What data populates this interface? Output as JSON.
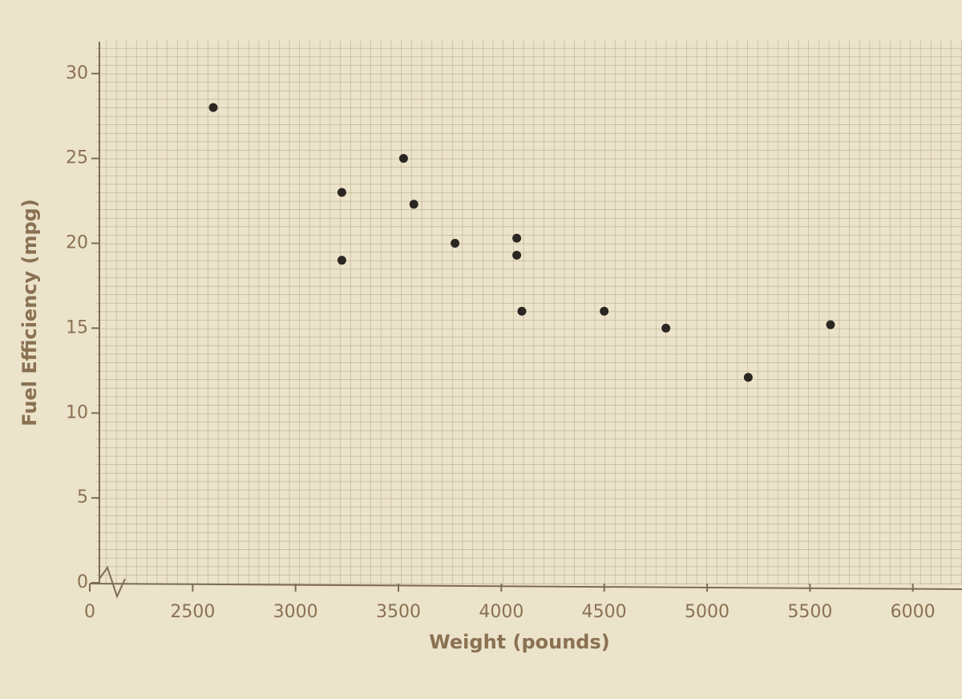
{
  "chart_data": {
    "type": "scatter",
    "x_label": "Weight (pounds)",
    "y_label": "Fuel Efficiency (mpg)",
    "x": [
      2600,
      3225,
      3225,
      3525,
      3575,
      3775,
      4075,
      4075,
      4100,
      4500,
      4800,
      5200,
      5600
    ],
    "values": [
      28,
      23,
      19,
      25,
      22.3,
      20,
      20.3,
      19.3,
      16,
      16,
      15,
      12.1,
      15.2
    ],
    "color": "#2b2622",
    "xlim": [
      0,
      6200
    ],
    "x_break": [
      0,
      2000
    ],
    "xticks": [
      0,
      2500,
      3000,
      3500,
      4000,
      4500,
      5000,
      5500,
      6000
    ],
    "ylim": [
      0,
      31.5
    ],
    "yticks": [
      0,
      5,
      10,
      15,
      20,
      25,
      30
    ],
    "grid": true
  }
}
